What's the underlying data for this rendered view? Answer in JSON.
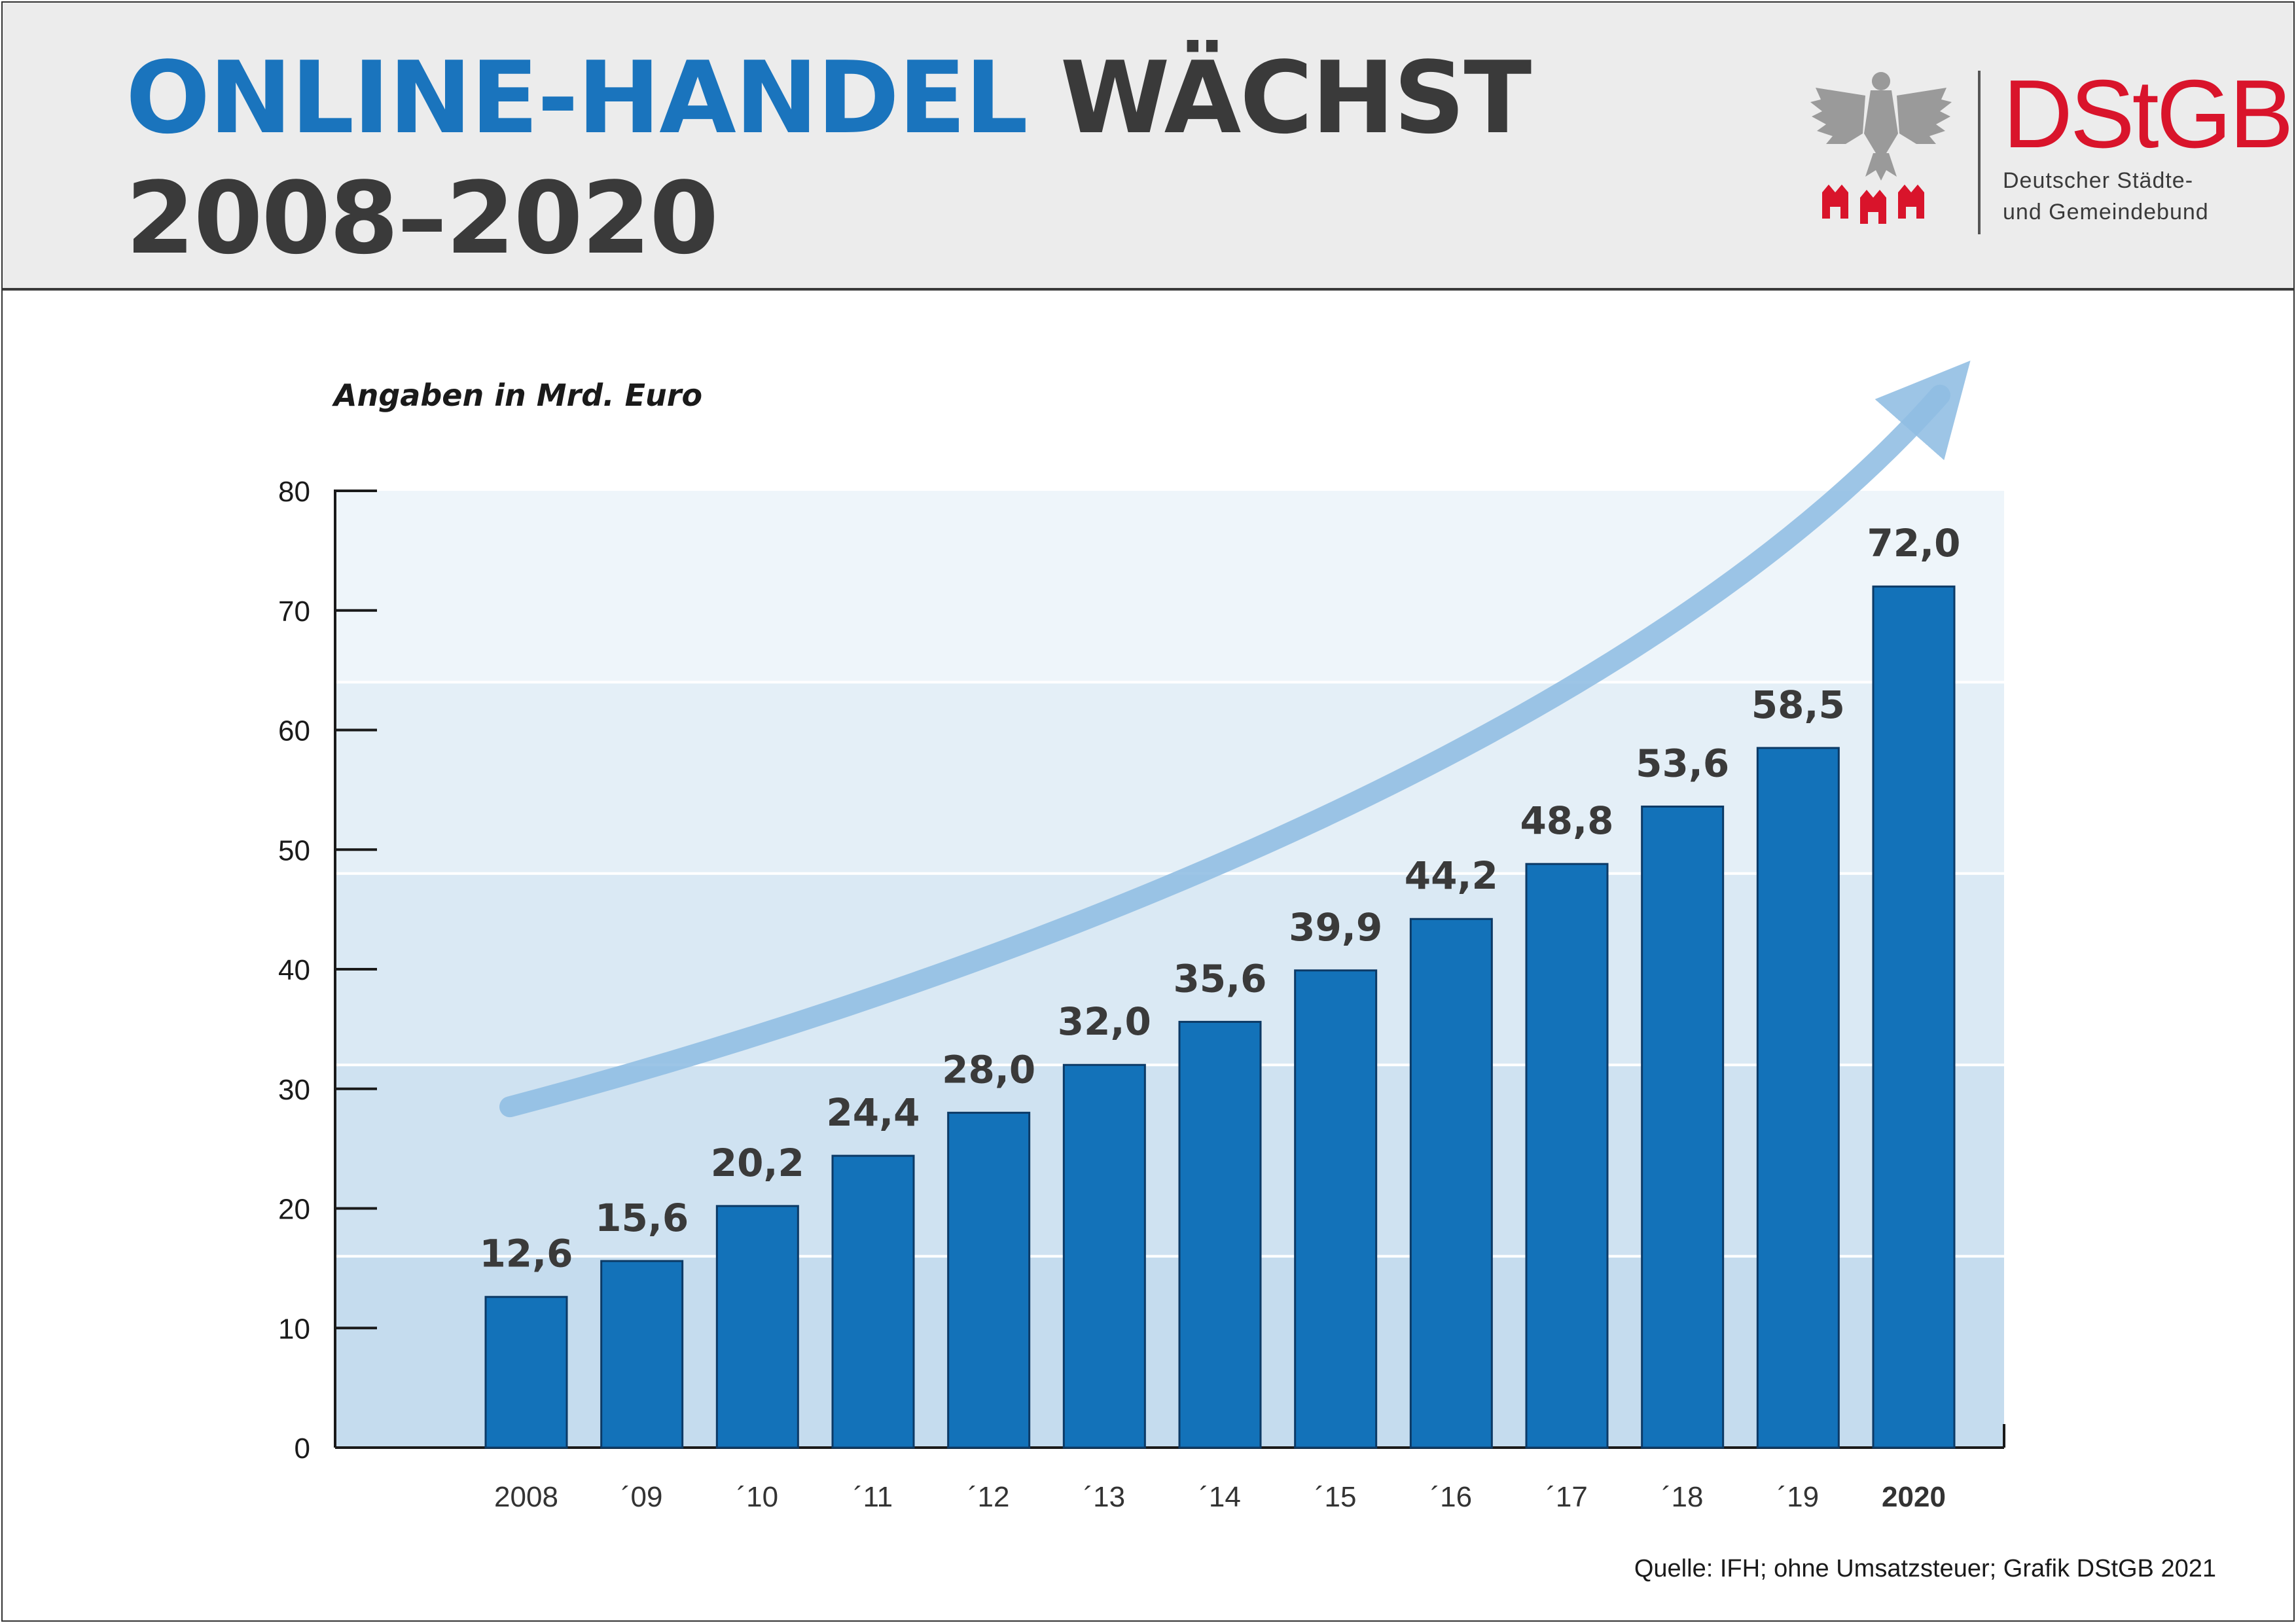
{
  "header": {
    "title_highlight": "ONLINE-HANDEL",
    "title_rest": "WÄCHST",
    "title_years": "2008–2020",
    "logo_abbr": "DStGB",
    "logo_line1": "Deutscher Städte-",
    "logo_line2": "und Gemeindebund",
    "logo_icons": [
      "federal-eagle-icon",
      "city-gates-icon"
    ]
  },
  "colors": {
    "accent": "#1a74bd",
    "bar": "#1372b9",
    "brand_red": "#d9142b",
    "arrow": "#8fbde3",
    "text_dark": "#3a3a3a",
    "band_light": "#eef5fa",
    "band_dark": "#c5dcee"
  },
  "chart_data": {
    "type": "bar",
    "unit_note": "Angaben in Mrd. Euro",
    "categories": [
      "2008",
      "´09",
      "´10",
      "´11",
      "´12",
      "´13",
      "´14",
      "´15",
      "´16",
      "´17",
      "´18",
      "´19",
      "2020"
    ],
    "bold_categories": [
      "2020"
    ],
    "values": [
      12.6,
      15.6,
      20.2,
      24.4,
      28.0,
      32.0,
      35.6,
      39.9,
      44.2,
      48.8,
      53.6,
      58.5,
      72.0
    ],
    "value_labels": [
      "12,6",
      "15,6",
      "20,2",
      "24,4",
      "28,0",
      "32,0",
      "35,6",
      "39,9",
      "44,2",
      "48,8",
      "53,6",
      "58,5",
      "72,0"
    ],
    "yticks": [
      "0",
      "10",
      "20",
      "30",
      "40",
      "50",
      "60",
      "70",
      "80"
    ],
    "ylim": [
      0,
      80
    ],
    "grid": false,
    "legend": "none",
    "trend_arrow": true
  },
  "source": "Quelle: IFH; ohne Umsatzsteuer; Grafik DStGB 2021"
}
